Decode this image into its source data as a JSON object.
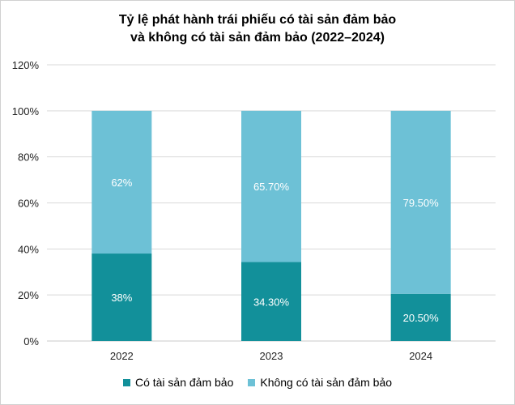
{
  "chart_data": {
    "type": "bar",
    "stacked": true,
    "title_line1": "Tỷ lệ phát hành trái phiếu có tài sản đảm bảo",
    "title_line2": "và không có tài sản đảm bảo (2022–2024)",
    "categories": [
      "2022",
      "2023",
      "2024"
    ],
    "series": [
      {
        "name": "Có tài sản đảm bảo",
        "values": [
          38,
          34.3,
          20.5
        ],
        "labels": [
          "38%",
          "34.30%",
          "20.50%"
        ],
        "color": "#12909a"
      },
      {
        "name": "Không có tài sản đảm bảo",
        "values": [
          62,
          65.7,
          79.5
        ],
        "labels": [
          "62%",
          "65.70%",
          "79.50%"
        ],
        "color": "#6dc1d6"
      }
    ],
    "ylim": [
      0,
      120
    ],
    "yticks": [
      0,
      20,
      40,
      60,
      80,
      100,
      120
    ],
    "ytick_labels": [
      "0%",
      "20%",
      "40%",
      "60%",
      "80%",
      "100%",
      "120%"
    ],
    "grid": true,
    "legend_position": "bottom"
  }
}
